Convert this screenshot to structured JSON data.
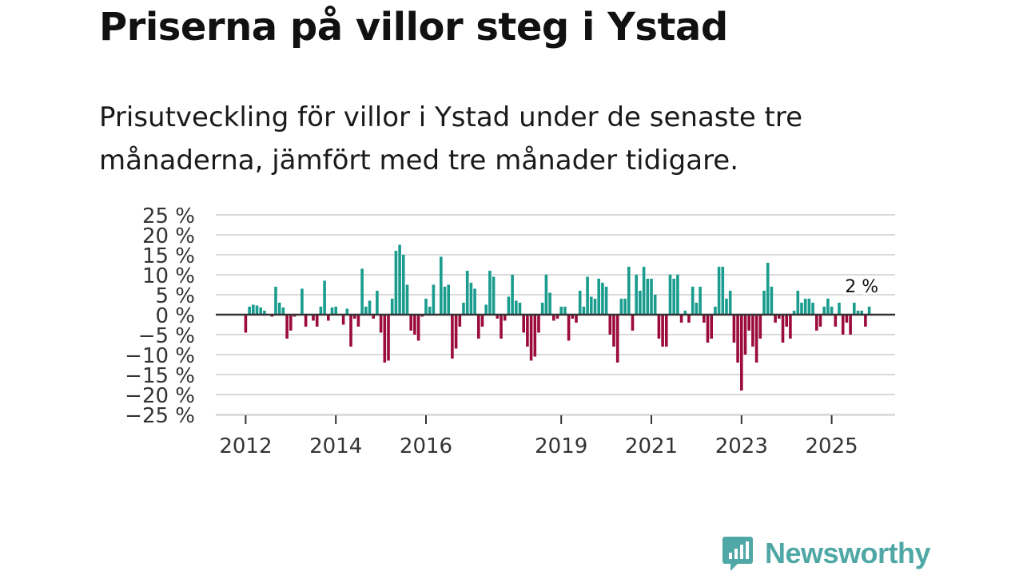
{
  "title": "Priserna på villor steg i Ystad",
  "subtitle": "Prisutveckling för villor i Ystad under de senaste tre månaderna, jämfört med tre månader tidigare.",
  "brand": "Newsworthy",
  "colors": {
    "positive": "#1a9c8f",
    "negative": "#9b0b3b",
    "grid": "#d9d9d9",
    "zero": "#333333",
    "brand": "#4fa8a5"
  },
  "chart_data": {
    "type": "bar",
    "ylim": [
      -25,
      25
    ],
    "yticks": [
      25,
      20,
      15,
      10,
      5,
      0,
      -5,
      -10,
      -15,
      -20,
      -25
    ],
    "ytick_labels": [
      "25 %",
      "20 %",
      "15 %",
      "10 %",
      "5 %",
      "0 %",
      "−5 %",
      "−10 %",
      "−15 %",
      "−20 %",
      "−25 %"
    ],
    "xticks": [
      {
        "label": "2012",
        "index": 0
      },
      {
        "label": "2014",
        "index": 24
      },
      {
        "label": "2016",
        "index": 48
      },
      {
        "label": "2019",
        "index": 84
      },
      {
        "label": "2021",
        "index": 108
      },
      {
        "label": "2023",
        "index": 132
      },
      {
        "label": "2025",
        "index": 156
      }
    ],
    "annotation": {
      "label": "2 %",
      "index": 164
    },
    "start": "2012-01",
    "values": [
      -4.5,
      2,
      2.5,
      2.3,
      1.8,
      1,
      0,
      -0.5,
      7,
      3,
      1.8,
      -6,
      -4,
      -0.5,
      0,
      6.5,
      -3,
      0,
      -1.5,
      -3,
      2,
      8.5,
      -1.5,
      1.8,
      2,
      0,
      -2.5,
      1.5,
      -8,
      -1,
      -3,
      11.5,
      2,
      3.5,
      -1,
      6,
      -4.5,
      -12,
      -11.5,
      4,
      16,
      17.5,
      15,
      7.5,
      -4,
      -5,
      -6.5,
      -0.5,
      4,
      2,
      7.5,
      0,
      14.5,
      7,
      7.5,
      -11,
      -8.5,
      -3,
      3,
      11,
      8,
      6.5,
      -6,
      -3,
      2.5,
      11,
      9.5,
      -1,
      -6,
      -1.5,
      4.5,
      10,
      3.5,
      3,
      -4.5,
      -8,
      -11.5,
      -10.5,
      -4.5,
      3,
      10,
      5.5,
      -1.5,
      -1,
      2,
      2,
      -6.5,
      -1,
      -2,
      6,
      2,
      9.5,
      4.5,
      4,
      9,
      8,
      7,
      -5,
      -8,
      -12,
      4,
      4,
      12,
      -4,
      10,
      6,
      12,
      9,
      9,
      5,
      -6,
      -8,
      -8,
      10,
      9,
      10,
      -2,
      1,
      -2,
      7,
      3,
      7,
      -2,
      -7,
      -6,
      2,
      12,
      12,
      4,
      6,
      -7,
      -12,
      -19,
      -10,
      -4,
      -8,
      -12,
      -6,
      6,
      13,
      7,
      -2,
      -1,
      -7,
      -3,
      -6,
      1,
      6,
      3,
      4,
      4,
      3,
      -4,
      -3,
      2,
      4,
      2,
      -3,
      3,
      -5,
      -2,
      -5,
      3,
      1,
      1,
      -3,
      2
    ]
  }
}
